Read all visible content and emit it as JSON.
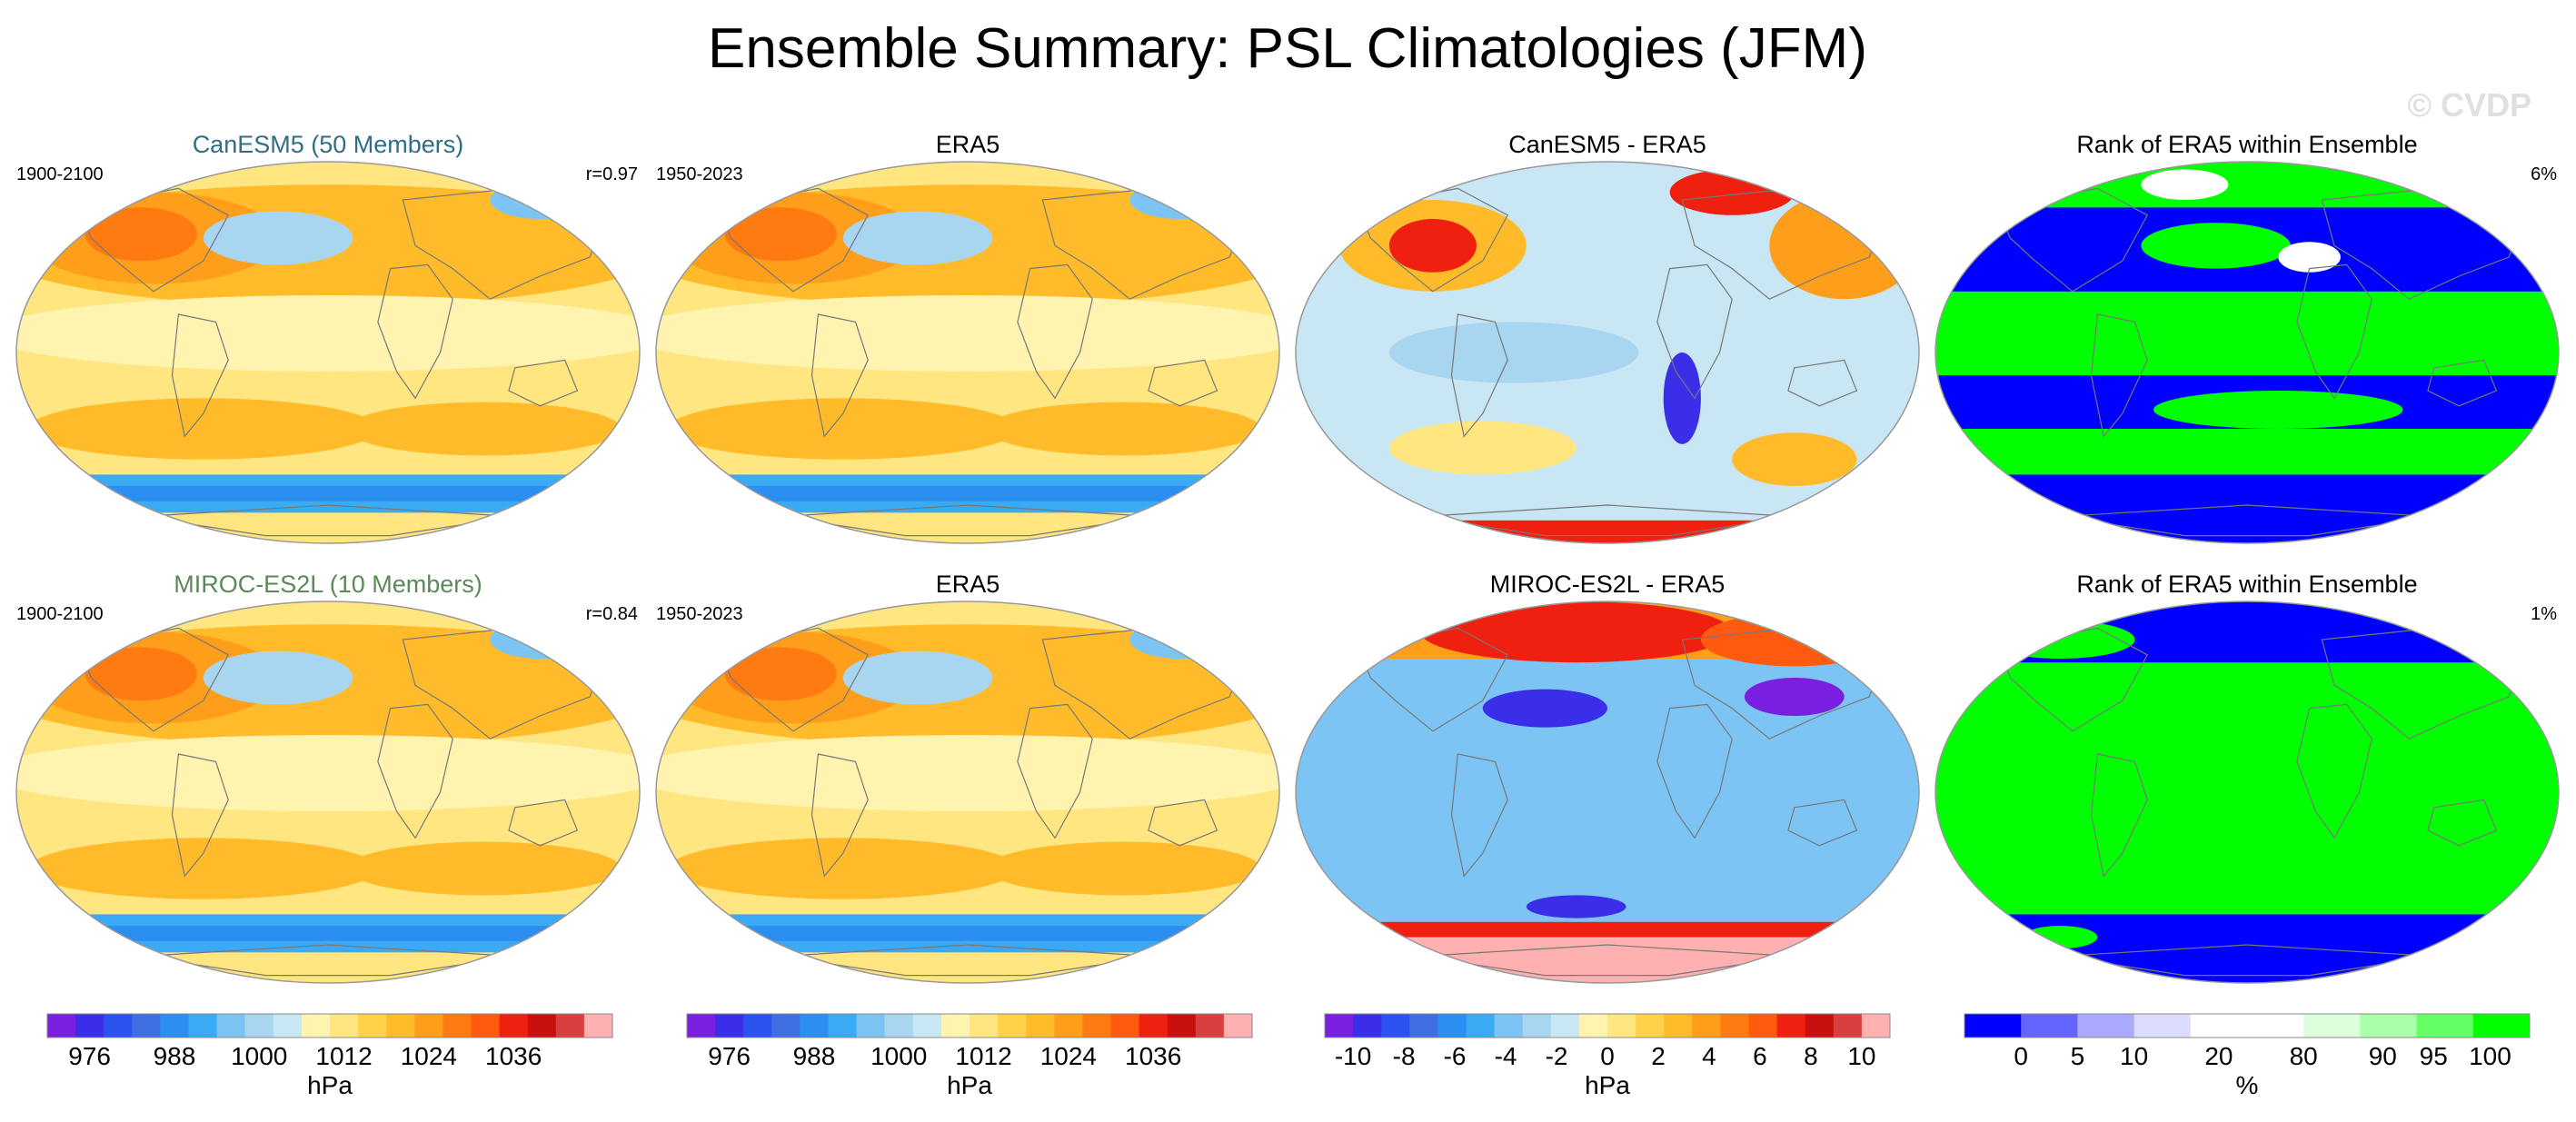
{
  "title": "Ensemble Summary: PSL Climatologies (JFM)",
  "watermark": "© CVDP",
  "rows": [
    {
      "panels": [
        {
          "title": "CanESM5 (50 Members)",
          "title_color": "#2e6f87",
          "left": "1900-2100",
          "right": "r=0.97",
          "kind": "clim"
        },
        {
          "title": "ERA5",
          "title_color": "#000000",
          "left": "1950-2023",
          "right": "",
          "kind": "clim"
        },
        {
          "title": "CanESM5 - ERA5",
          "title_color": "#000000",
          "left": "",
          "right": "",
          "kind": "diff1"
        },
        {
          "title": "Rank of ERA5 within Ensemble",
          "title_color": "#000000",
          "left": "",
          "right": "6%",
          "kind": "rank1"
        }
      ]
    },
    {
      "panels": [
        {
          "title": "MIROC-ES2L (10 Members)",
          "title_color": "#5a8a5a",
          "left": "1900-2100",
          "right": "r=0.84",
          "kind": "clim"
        },
        {
          "title": "ERA5",
          "title_color": "#000000",
          "left": "1950-2023",
          "right": "",
          "kind": "clim"
        },
        {
          "title": "MIROC-ES2L - ERA5",
          "title_color": "#000000",
          "left": "",
          "right": "",
          "kind": "diff2"
        },
        {
          "title": "Rank of ERA5 within Ensemble",
          "title_color": "#000000",
          "left": "",
          "right": "1%",
          "kind": "rank2"
        }
      ]
    }
  ],
  "colorbars": [
    {
      "unit": "hPa",
      "colors": [
        "#7a1fe0",
        "#3a2ee8",
        "#2c52f0",
        "#3f6fe0",
        "#2a8ff0",
        "#3aaaf5",
        "#7cc4f3",
        "#a8d5ef",
        "#c9e6f5",
        "#fff3b0",
        "#ffe680",
        "#ffd24a",
        "#ffbb2a",
        "#ff9e1a",
        "#ff7a10",
        "#ff5a10",
        "#f02010",
        "#c81010",
        "#d84040",
        "#ffb0b0"
      ],
      "labels": [
        "976",
        "988",
        "1000",
        "1012",
        "1024",
        "1036"
      ],
      "label_slots": [
        1.5,
        4.5,
        7.5,
        10.5,
        13.5,
        16.5
      ]
    },
    {
      "unit": "hPa",
      "colors": [
        "#7a1fe0",
        "#3a2ee8",
        "#2c52f0",
        "#3f6fe0",
        "#2a8ff0",
        "#3aaaf5",
        "#7cc4f3",
        "#a8d5ef",
        "#c9e6f5",
        "#fff3b0",
        "#ffe680",
        "#ffd24a",
        "#ffbb2a",
        "#ff9e1a",
        "#ff7a10",
        "#ff5a10",
        "#f02010",
        "#c81010",
        "#d84040",
        "#ffb0b0"
      ],
      "labels": [
        "976",
        "988",
        "1000",
        "1012",
        "1024",
        "1036"
      ],
      "label_slots": [
        1.5,
        4.5,
        7.5,
        10.5,
        13.5,
        16.5
      ]
    },
    {
      "unit": "hPa",
      "colors": [
        "#7a1fe0",
        "#3a2ee8",
        "#2c52f0",
        "#3f6fe0",
        "#2a8ff0",
        "#3aaaf5",
        "#7cc4f3",
        "#a8d5ef",
        "#c9e6f5",
        "#fff3b0",
        "#ffe680",
        "#ffd24a",
        "#ffbb2a",
        "#ff9e1a",
        "#ff7a10",
        "#ff5a10",
        "#f02010",
        "#c81010",
        "#d84040",
        "#ffb0b0"
      ],
      "labels": [
        "-10",
        "-8",
        "-6",
        "-4",
        "-2",
        "0",
        "2",
        "4",
        "6",
        "8",
        "10"
      ],
      "label_slots": [
        1,
        2.8,
        4.6,
        6.4,
        8.2,
        10,
        11.8,
        13.6,
        15.4,
        17.2,
        19
      ]
    },
    {
      "unit": "%",
      "colors": [
        "#0000ff",
        "#6464ff",
        "#aaaaff",
        "#dcdcff",
        "#ffffff",
        "#ffffff",
        "#dcffdc",
        "#aaffaa",
        "#64ff64",
        "#00ff00"
      ],
      "labels": [
        "0",
        "5",
        "10",
        "20",
        "80",
        "90",
        "95",
        "100"
      ],
      "label_slots": [
        1,
        2,
        3,
        4.5,
        6,
        7.4,
        8.3,
        9.3
      ]
    }
  ],
  "colors": {
    "land_outline": "#777777",
    "map_border": "#999999",
    "rank_low": "#0000ff",
    "rank_high": "#00ff00",
    "watermark": "#e0e0e0"
  }
}
